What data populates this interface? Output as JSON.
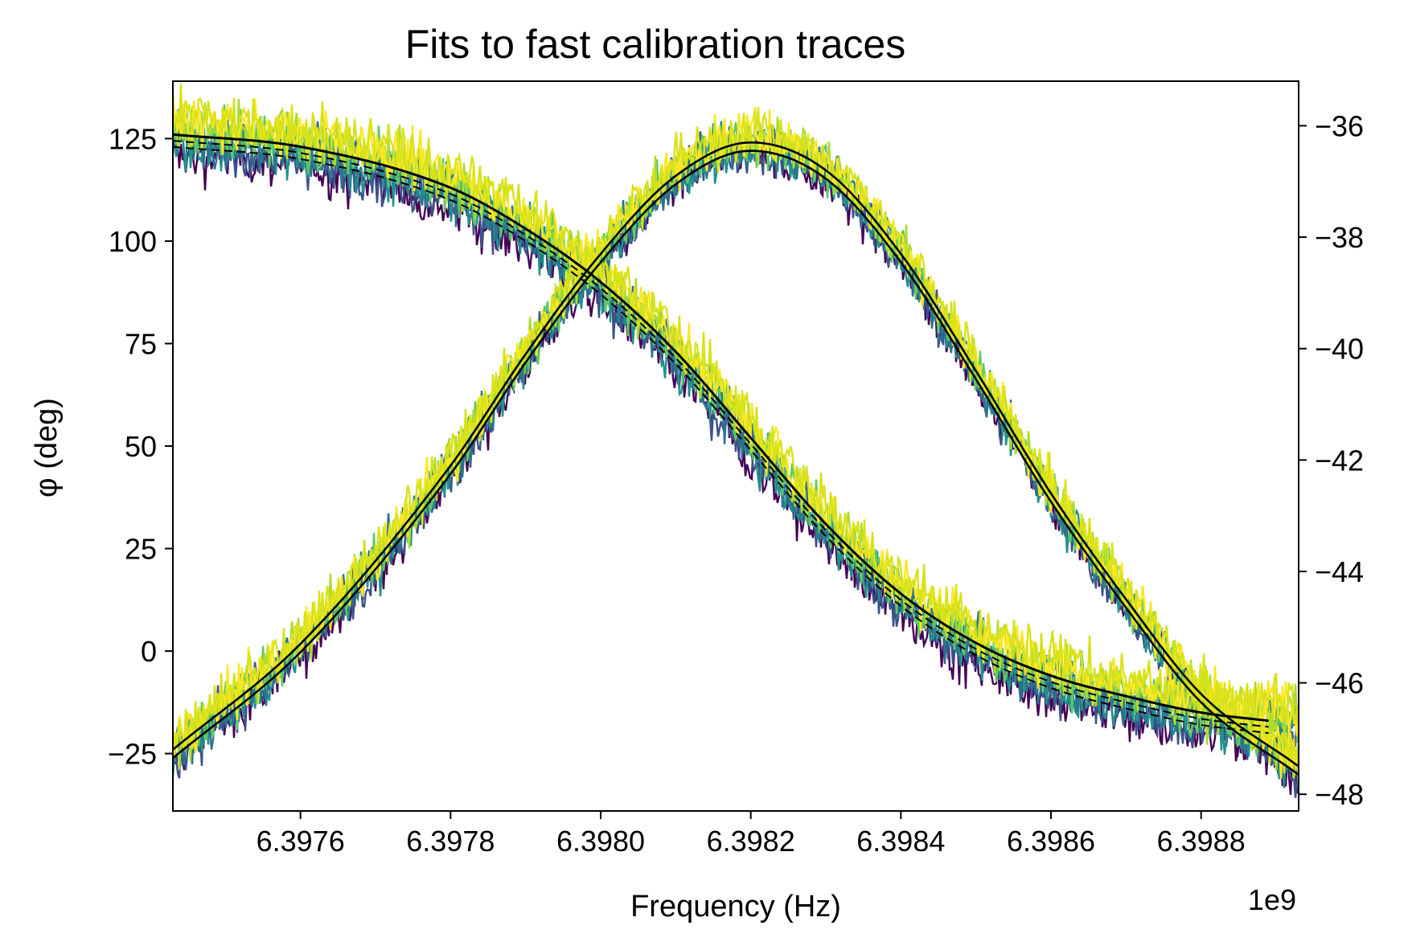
{
  "chart_data": {
    "type": "line",
    "title": "Fits to fast calibration traces",
    "xlabel": "Frequency (Hz)",
    "ylabel": "φ (deg)",
    "x_offset_label": "1e9",
    "xlim": [
      6.39743,
      6.39893
    ],
    "ylim_left": [
      -39,
      139
    ],
    "ylim_right": [
      -48.3,
      -35.2
    ],
    "x_ticks": [
      {
        "value": 6.3976,
        "label": "6.3976"
      },
      {
        "value": 6.3978,
        "label": "6.3978"
      },
      {
        "value": 6.398,
        "label": "6.3980"
      },
      {
        "value": 6.3982,
        "label": "6.3982"
      },
      {
        "value": 6.3984,
        "label": "6.3984"
      },
      {
        "value": 6.3986,
        "label": "6.3986"
      },
      {
        "value": 6.3988,
        "label": "6.3988"
      }
    ],
    "y_ticks_left": [
      {
        "value": 125,
        "label": "125"
      },
      {
        "value": 100,
        "label": "100"
      },
      {
        "value": 75,
        "label": "75"
      },
      {
        "value": 50,
        "label": "50"
      },
      {
        "value": 25,
        "label": "25"
      },
      {
        "value": 0,
        "label": "0"
      },
      {
        "value": -25,
        "label": "−25"
      }
    ],
    "y_ticks_right": [
      {
        "value": -36,
        "label": "−36"
      },
      {
        "value": -38,
        "label": "−38"
      },
      {
        "value": -40,
        "label": "−40"
      },
      {
        "value": -42,
        "label": "−42"
      },
      {
        "value": -44,
        "label": "−44"
      },
      {
        "value": -46,
        "label": "−46"
      },
      {
        "value": -48,
        "label": "−48"
      }
    ],
    "grid": false,
    "legend": "none",
    "trace_colors": [
      "#440154",
      "#3b528b",
      "#21918c",
      "#2c728e",
      "#5ec962",
      "#addc30",
      "#fde725",
      "#d8e219"
    ],
    "fit_color": "#000000",
    "phase_fit": {
      "axis": "left",
      "x": [
        6.39743,
        6.3976,
        6.3978,
        6.3979,
        6.398,
        6.3981,
        6.3982,
        6.3983,
        6.3984,
        6.3985,
        6.3986,
        6.3987,
        6.3988,
        6.39889
      ],
      "y": [
        126,
        123,
        113,
        103,
        90,
        73,
        52,
        31,
        14,
        2,
        -6,
        -11,
        -15,
        -17
      ]
    },
    "magnitude_fit": {
      "axis": "right",
      "x": [
        6.39743,
        6.3976,
        6.3978,
        6.3979,
        6.398,
        6.3981,
        6.3982,
        6.3983,
        6.3984,
        6.3985,
        6.3986,
        6.3987,
        6.3988,
        6.39893
      ],
      "y": [
        -47.2,
        -45.3,
        -42.1,
        -40.1,
        -38.3,
        -36.9,
        -36.3,
        -36.8,
        -38.3,
        -40.4,
        -42.6,
        -44.5,
        -46.2,
        -47.5
      ]
    }
  }
}
